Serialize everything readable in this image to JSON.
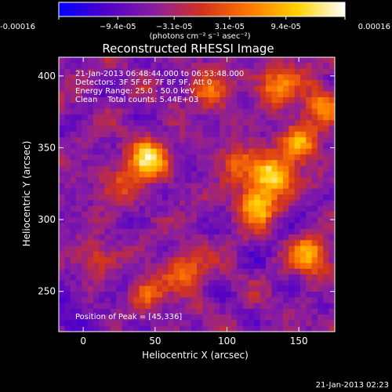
{
  "chart_data": {
    "type": "heatmap",
    "title": "Reconstructed RHESSI Image",
    "xlabel": "Heliocentric X (arcsec)",
    "ylabel": "Heliocentric Y (arcsec)",
    "xlim": [
      -17,
      175
    ],
    "ylim": [
      222,
      413
    ],
    "x_ticks": [
      0,
      50,
      100,
      150
    ],
    "y_ticks": [
      250,
      300,
      350,
      400
    ],
    "colorbar": {
      "min": -0.00016,
      "max": 0.00016,
      "tick_values": [
        -0.00016,
        -9.4e-05,
        -3.1e-05,
        3.1e-05,
        9.4e-05,
        0.00016
      ],
      "tick_labels": [
        "-0.00016",
        "−9.4e-05",
        "−3.1e-05",
        "3.1e-05",
        "9.4e-05",
        "0.00016"
      ],
      "units_label": "(photons cm⁻² s⁻¹ asec⁻²)",
      "colors": [
        "#0000ff",
        "#5000c8",
        "#8a1ea0",
        "#d2321e",
        "#ff7800",
        "#ffd200",
        "#ffffff"
      ]
    },
    "annotations": {
      "time_range": "21-Jan-2013 06:48:44.000 to 06:53:48.000",
      "detectors": "Detectors: 3F 5F 6F 7F 8F 9F, Att 0",
      "energy_range": "Energy Range: 25.0 - 50.0 keV",
      "clean": "Clean    Total counts: 5.44E+03",
      "peak": "Position of Peak = [45,336]"
    },
    "sources": [
      {
        "x": 45,
        "y": 342,
        "amplitude": 1.0
      },
      {
        "x": 131,
        "y": 330,
        "amplitude": 1.0
      },
      {
        "x": 120,
        "y": 310,
        "amplitude": 0.8
      },
      {
        "x": 150,
        "y": 352,
        "amplitude": 0.75
      },
      {
        "x": 135,
        "y": 395,
        "amplitude": 0.7
      },
      {
        "x": 158,
        "y": 275,
        "amplitude": 0.7
      },
      {
        "x": 88,
        "y": 390,
        "amplitude": 0.5
      },
      {
        "x": 72,
        "y": 265,
        "amplitude": 0.55
      },
      {
        "x": 45,
        "y": 248,
        "amplitude": 0.5
      },
      {
        "x": 108,
        "y": 340,
        "amplitude": 0.45
      },
      {
        "x": 8,
        "y": 272,
        "amplitude": 0.4
      },
      {
        "x": 25,
        "y": 325,
        "amplitude": 0.35
      },
      {
        "x": 165,
        "y": 380,
        "amplitude": 0.6
      }
    ]
  },
  "footer": {
    "timestamp": "21-Jan-2013 02:23"
  }
}
